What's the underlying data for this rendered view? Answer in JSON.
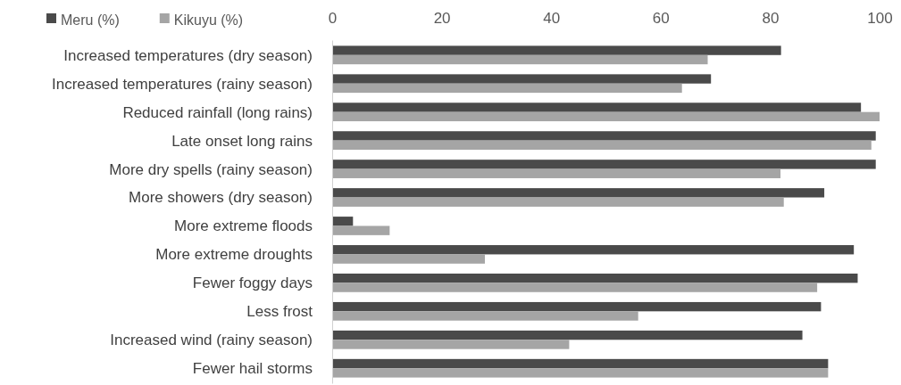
{
  "chart_data": {
    "type": "bar",
    "orientation": "horizontal",
    "categories": [
      "Increased temperatures (dry season)",
      "Increased temperatures (rainy season)",
      "Reduced rainfall (long rains)",
      "Late onset long rains",
      "More dry spells (rainy season)",
      "More showers (dry season)",
      "More extreme floods",
      "More extreme droughts",
      "Fewer foggy days",
      "Less frost",
      "Increased wind (rainy season)",
      "Fewer hail storms"
    ],
    "series": [
      {
        "name": "Meru (%)",
        "color": "#4a4a4a",
        "values": [
          82,
          69.2,
          96.6,
          99.3,
          99.3,
          89.9,
          3.8,
          95.3,
          96,
          89.3,
          85.9,
          90.6
        ]
      },
      {
        "name": "Kikuyu (%)",
        "color": "#a5a5a5",
        "values": [
          68.6,
          63.9,
          100,
          98.5,
          81.9,
          82.5,
          10.5,
          27.9,
          88.6,
          55.9,
          43.3,
          90.6
        ]
      }
    ],
    "xlim": [
      0,
      100
    ],
    "xticks": [
      0,
      20,
      40,
      60,
      80,
      100
    ],
    "grid": false,
    "legend": "top left"
  }
}
